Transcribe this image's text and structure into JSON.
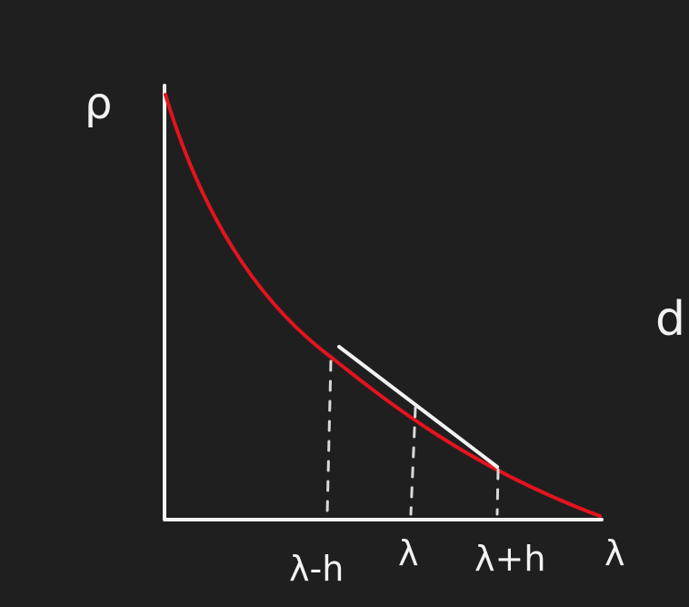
{
  "diagram": {
    "colors": {
      "background": "#201f1f",
      "axes": "#f2f2f2",
      "curve": "#e4131f",
      "secant": "#f2f2f2",
      "guides": "#d9d9d9"
    },
    "labels": {
      "y_axis": "ρ",
      "x_axis": "λ",
      "left_point": "λ-h",
      "center_point": "λ",
      "right_point": "λ+h",
      "cut_off_text": "d"
    }
  }
}
